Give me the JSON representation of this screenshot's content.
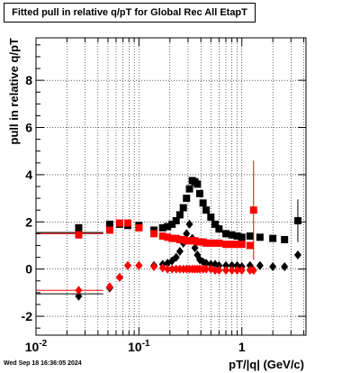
{
  "chart_data": {
    "type": "scatter",
    "title": "Fitted pull in relative q/pT for Global Rec All EtapT",
    "xlabel": "pT/|q| (GeV/c)",
    "ylabel": "pull in relative q/pT",
    "x_scale": "log",
    "xlim": [
      0.01,
      4.2
    ],
    "ylim": [
      -2.8,
      9.8
    ],
    "x_ticks": [
      {
        "v": 0.01,
        "label": "10",
        "exp": "-2"
      },
      {
        "v": 0.1,
        "label": "10",
        "exp": "-1"
      },
      {
        "v": 1,
        "label": "1",
        "exp": ""
      }
    ],
    "y_ticks": [
      -2,
      0,
      2,
      4,
      6,
      8
    ],
    "grid": true,
    "colors": {
      "black": "#000000",
      "red": "#ff0000"
    },
    "series": [
      {
        "marker": "square",
        "color": "#000000",
        "x": [
          0.026,
          0.052,
          0.065,
          0.078,
          0.1,
          0.14,
          0.17,
          0.19,
          0.21,
          0.23,
          0.25,
          0.27,
          0.29,
          0.31,
          0.33,
          0.35,
          0.37,
          0.39,
          0.42,
          0.45,
          0.5,
          0.55,
          0.6,
          0.7,
          0.8,
          0.9,
          1.0,
          1.2,
          1.5,
          2.0,
          2.6,
          3.5
        ],
        "y": [
          1.75,
          1.9,
          1.9,
          1.85,
          1.85,
          1.65,
          1.75,
          1.8,
          1.9,
          2.05,
          2.3,
          2.6,
          3.0,
          3.4,
          3.75,
          3.7,
          3.6,
          3.2,
          2.8,
          2.5,
          2.2,
          1.9,
          1.7,
          1.5,
          1.45,
          1.4,
          1.35,
          1.4,
          1.35,
          1.3,
          1.25,
          2.05
        ],
        "yerr": [
          0.1,
          0.08,
          0.05,
          0.05,
          0.05,
          0.05,
          0.05,
          0.05,
          0.05,
          0.05,
          0.05,
          0.05,
          0.05,
          0.05,
          0.05,
          0.05,
          0.05,
          0.05,
          0.05,
          0.05,
          0.05,
          0.05,
          0.05,
          0.05,
          0.05,
          0.05,
          0.05,
          0.1,
          0.1,
          0.1,
          0.15,
          0.9
        ],
        "xerr_ranges": [
          [
            0.01,
            0.045
          ],
          [
            0.01,
            0.045
          ]
        ],
        "xerr_levels": [
          1.55,
          1.55
        ]
      },
      {
        "marker": "diamond",
        "color": "#000000",
        "x": [
          0.026,
          0.052,
          0.065,
          0.078,
          0.1,
          0.14,
          0.17,
          0.19,
          0.21,
          0.23,
          0.25,
          0.27,
          0.29,
          0.31,
          0.33,
          0.35,
          0.37,
          0.39,
          0.42,
          0.45,
          0.5,
          0.55,
          0.6,
          0.7,
          0.8,
          0.9,
          1.0,
          1.2,
          1.5,
          2.0,
          2.6,
          3.5
        ],
        "y": [
          -1.15,
          -0.8,
          -0.35,
          0.15,
          0.15,
          0.15,
          0.2,
          0.25,
          0.35,
          0.5,
          0.75,
          1.1,
          1.5,
          1.9,
          1.3,
          0.9,
          0.6,
          0.4,
          0.3,
          0.25,
          0.2,
          0.2,
          0.15,
          0.15,
          0.15,
          0.15,
          0.1,
          0.15,
          0.15,
          0.1,
          0.1,
          0.6
        ],
        "xerr_ranges": [
          [
            0.01,
            0.045
          ]
        ],
        "xerr_levels": [
          -1.05
        ]
      },
      {
        "marker": "square",
        "color": "#ff0000",
        "x": [
          0.026,
          0.052,
          0.065,
          0.078,
          0.1,
          0.14,
          0.17,
          0.19,
          0.21,
          0.23,
          0.25,
          0.27,
          0.29,
          0.31,
          0.33,
          0.35,
          0.37,
          0.39,
          0.42,
          0.45,
          0.5,
          0.55,
          0.6,
          0.7,
          0.8,
          0.9,
          1.0,
          1.2,
          1.3
        ],
        "y": [
          1.45,
          1.65,
          1.95,
          1.95,
          1.75,
          1.5,
          1.4,
          1.35,
          1.3,
          1.3,
          1.25,
          1.25,
          1.2,
          1.2,
          1.2,
          1.2,
          1.15,
          1.15,
          1.15,
          1.1,
          1.1,
          1.1,
          1.1,
          1.05,
          1.05,
          1.05,
          1.05,
          1.0,
          2.5
        ],
        "yerr": [
          0.1,
          0.08,
          0.05,
          0.05,
          0.05,
          0.05,
          0.05,
          0.05,
          0.05,
          0.05,
          0.05,
          0.05,
          0.05,
          0.05,
          0.05,
          0.05,
          0.05,
          0.05,
          0.05,
          0.05,
          0.05,
          0.05,
          0.05,
          0.05,
          0.05,
          0.05,
          0.05,
          0.1,
          2.1
        ],
        "xerr_ranges": [
          [
            0.01,
            0.045
          ]
        ],
        "xerr_levels": [
          1.5
        ]
      },
      {
        "marker": "diamond",
        "color": "#ff0000",
        "x": [
          0.026,
          0.052,
          0.065,
          0.078,
          0.1,
          0.14,
          0.17,
          0.19,
          0.21,
          0.23,
          0.25,
          0.27,
          0.29,
          0.31,
          0.33,
          0.35,
          0.37,
          0.39,
          0.42,
          0.45,
          0.5,
          0.55,
          0.6,
          0.7,
          0.8,
          0.9,
          1.0,
          1.2,
          1.3
        ],
        "y": [
          -0.9,
          -0.75,
          -0.35,
          0.15,
          0.15,
          0.1,
          0.05,
          0.0,
          0.0,
          0.0,
          0.0,
          0.0,
          0.0,
          0.0,
          0.0,
          0.0,
          0.0,
          0.0,
          0.0,
          0.0,
          0.0,
          -0.05,
          -0.05,
          -0.05,
          -0.05,
          -0.05,
          -0.05,
          -0.05,
          -0.05
        ],
        "xerr_ranges": [
          [
            0.01,
            0.045
          ]
        ],
        "xerr_levels": [
          -0.9
        ]
      }
    ]
  },
  "timestamp": "Wed Sep 18 16:36:05 2024"
}
